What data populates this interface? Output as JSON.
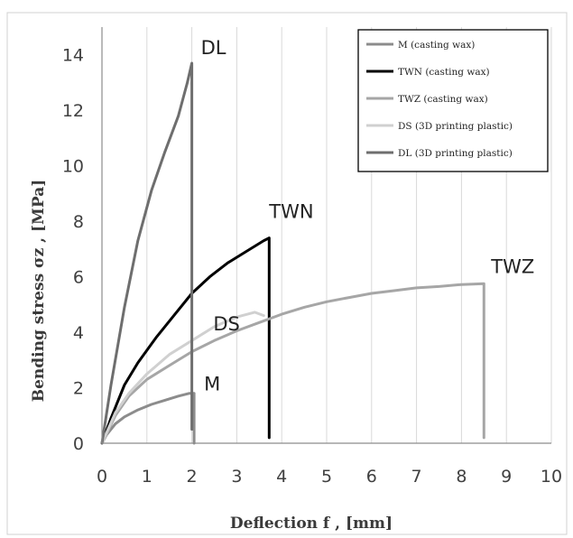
{
  "chart_data": {
    "type": "line",
    "title": "",
    "xlabel": "Deflection f , [mm]",
    "ylabel": "Bending stress σz , [MPa]",
    "xlim": [
      0,
      10
    ],
    "ylim": [
      0,
      15
    ],
    "x_ticks": [
      "0",
      "1",
      "2",
      "3",
      "4",
      "5",
      "6",
      "7",
      "8",
      "9",
      "10"
    ],
    "y_ticks": [
      "0",
      "2",
      "4",
      "6",
      "8",
      "10",
      "12",
      "14"
    ],
    "grid": "vertical",
    "legend_position": "top-right",
    "series": [
      {
        "name": "M (casting wax)",
        "label": "M",
        "color": "#8c8c8c",
        "x": [
          0,
          0.1,
          0.3,
          0.5,
          0.8,
          1.1,
          1.4,
          1.7,
          1.95,
          2.05,
          2.05
        ],
        "y": [
          0,
          0.3,
          0.7,
          0.95,
          1.2,
          1.4,
          1.55,
          1.7,
          1.8,
          1.8,
          0
        ]
      },
      {
        "name": "TWN (casting wax)",
        "label": "TWN",
        "color": "#000000",
        "x": [
          0,
          0.2,
          0.5,
          0.8,
          1.2,
          1.6,
          2.0,
          2.4,
          2.8,
          3.2,
          3.6,
          3.72,
          3.72
        ],
        "y": [
          0,
          0.9,
          2.1,
          2.9,
          3.8,
          4.6,
          5.4,
          6.0,
          6.5,
          6.9,
          7.3,
          7.4,
          0.2
        ]
      },
      {
        "name": "TWZ (casting wax)",
        "label": "TWZ",
        "color": "#a6a6a6",
        "x": [
          0,
          0.3,
          0.6,
          1.0,
          1.5,
          2.0,
          2.5,
          3.0,
          3.5,
          4.0,
          4.5,
          5.0,
          5.5,
          6.0,
          6.5,
          7.0,
          7.5,
          8.0,
          8.5,
          8.5
        ],
        "y": [
          0,
          1.0,
          1.7,
          2.3,
          2.8,
          3.3,
          3.7,
          4.05,
          4.35,
          4.65,
          4.9,
          5.1,
          5.25,
          5.4,
          5.5,
          5.6,
          5.65,
          5.72,
          5.75,
          0.2
        ]
      },
      {
        "name": "DS (3D printing plastic)",
        "label": "DS",
        "color": "#d0d0d0",
        "x": [
          0,
          0.3,
          0.6,
          1.0,
          1.5,
          2.0,
          2.5,
          3.0,
          3.4,
          3.6
        ],
        "y": [
          0,
          1.1,
          1.8,
          2.5,
          3.2,
          3.7,
          4.2,
          4.55,
          4.72,
          4.6
        ]
      },
      {
        "name": "DL (3D printing plastic)",
        "label": "DL",
        "color": "#6e6e6e",
        "x": [
          0,
          0.2,
          0.5,
          0.8,
          1.1,
          1.4,
          1.7,
          1.9,
          2.0,
          2.0
        ],
        "y": [
          0,
          2.1,
          4.9,
          7.3,
          9.1,
          10.5,
          11.8,
          13.0,
          13.7,
          0.5
        ]
      }
    ]
  }
}
